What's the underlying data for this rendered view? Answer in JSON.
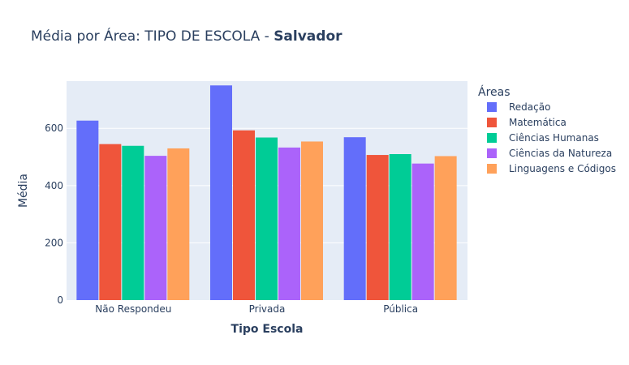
{
  "chart_data": {
    "type": "bar",
    "title": "Média por Área: TIPO DE ESCOLA - ",
    "title_bold": "Salvador",
    "xlabel": "Tipo Escola",
    "ylabel": "Média",
    "categories": [
      "Não Respondeu",
      "Privada",
      "Pública"
    ],
    "ylim": [
      0,
      750
    ],
    "yticks": [
      0,
      200,
      400,
      600
    ],
    "grid": true,
    "legend_title": "Áreas",
    "legend_position": "right",
    "series": [
      {
        "name": "Redação",
        "color": "#636efa",
        "values": [
          627,
          750,
          569
        ]
      },
      {
        "name": "Matemática",
        "color": "#ef553b",
        "values": [
          545,
          593,
          507
        ]
      },
      {
        "name": "Ciências Humanas",
        "color": "#00cc96",
        "values": [
          539,
          568,
          510
        ]
      },
      {
        "name": "Ciências da Natureza",
        "color": "#ab63fa",
        "values": [
          504,
          533,
          477
        ]
      },
      {
        "name": "Linguagens e Códigos",
        "color": "#ffa15a",
        "values": [
          530,
          554,
          503
        ]
      }
    ]
  }
}
